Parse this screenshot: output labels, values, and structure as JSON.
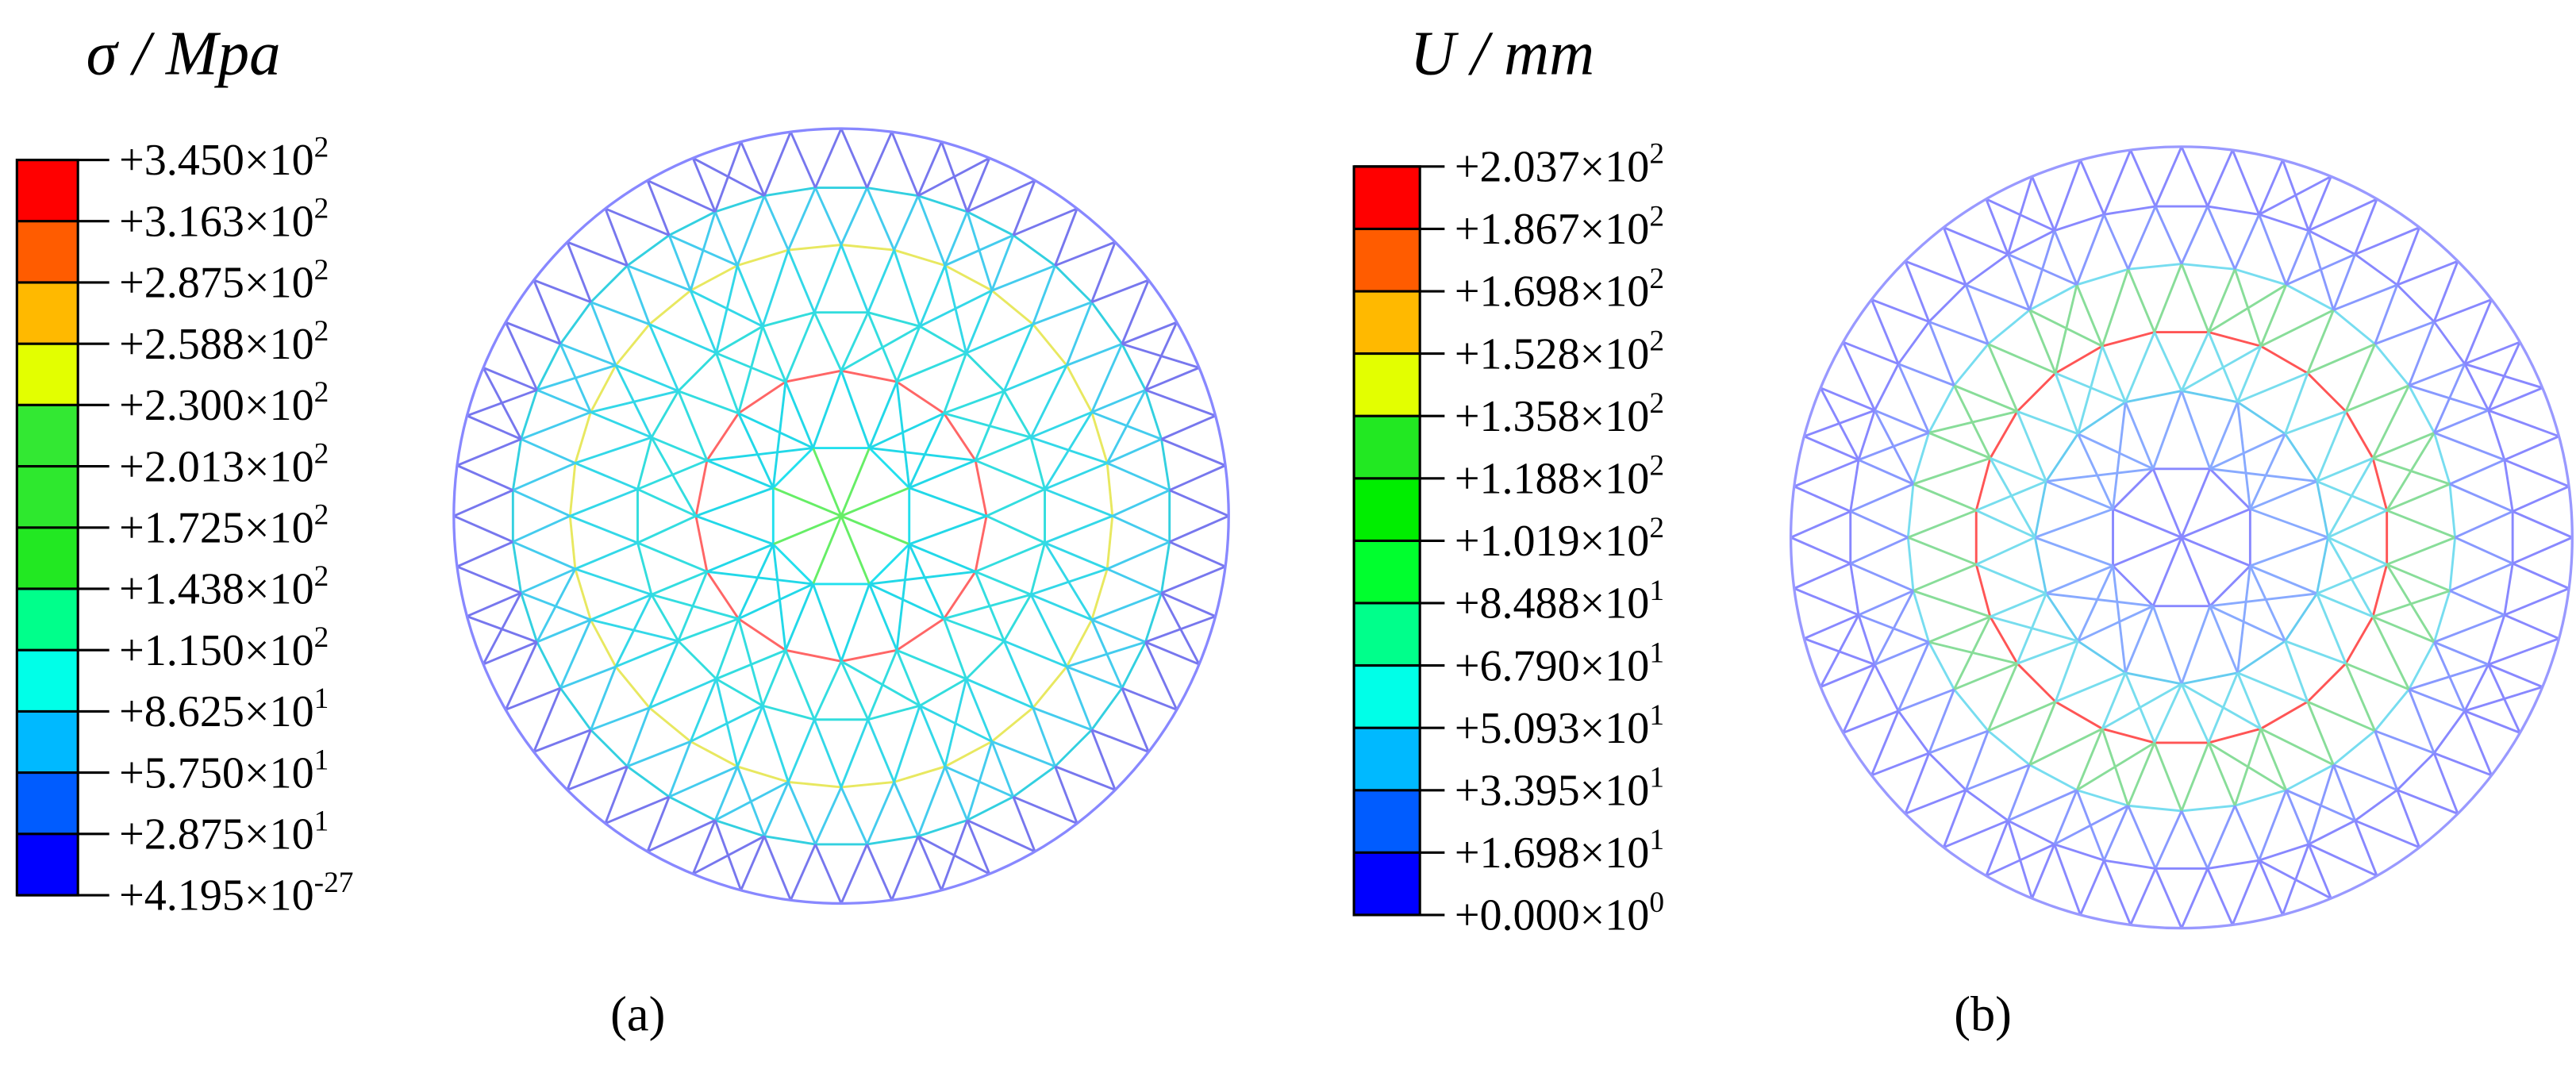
{
  "panels": [
    {
      "title": "σ / Mpa",
      "caption": "(a)",
      "colors": [
        "#ff0000",
        "#ff5c00",
        "#ffb900",
        "#e3ff00",
        "#33e833",
        "#2ee82e",
        "#22e822",
        "#00ff8b",
        "#00ffe8",
        "#00b9ff",
        "#005cff",
        "#0000ff"
      ],
      "labels": [
        {
          "mantissa": "+3.450×10",
          "exponent": "2"
        },
        {
          "mantissa": "+3.163×10",
          "exponent": "2"
        },
        {
          "mantissa": "+2.875×10",
          "exponent": "2"
        },
        {
          "mantissa": "+2.588×10",
          "exponent": "2"
        },
        {
          "mantissa": "+2.300×10",
          "exponent": "2"
        },
        {
          "mantissa": "+2.013×10",
          "exponent": "2"
        },
        {
          "mantissa": "+1.725×10",
          "exponent": "2"
        },
        {
          "mantissa": "+1.438×10",
          "exponent": "2"
        },
        {
          "mantissa": "+1.150×10",
          "exponent": "2"
        },
        {
          "mantissa": "+8.625×10",
          "exponent": "1"
        },
        {
          "mantissa": "+5.750×10",
          "exponent": "1"
        },
        {
          "mantissa": "+2.875×10",
          "exponent": "1"
        },
        {
          "mantissa": "+4.195×10",
          "exponent": "-27"
        }
      ]
    },
    {
      "title": "U / mm",
      "caption": "(b)",
      "colors": [
        "#ff0000",
        "#ff5c00",
        "#ffb900",
        "#e3ff00",
        "#22e822",
        "#00ee00",
        "#00ff2e",
        "#00ff8b",
        "#00ffe8",
        "#00b9ff",
        "#005cff",
        "#0000ff"
      ],
      "labels": [
        {
          "mantissa": "+2.037×10",
          "exponent": "2"
        },
        {
          "mantissa": "+1.867×10",
          "exponent": "2"
        },
        {
          "mantissa": "+1.698×10",
          "exponent": "2"
        },
        {
          "mantissa": "+1.528×10",
          "exponent": "2"
        },
        {
          "mantissa": "+1.358×10",
          "exponent": "2"
        },
        {
          "mantissa": "+1.188×10",
          "exponent": "2"
        },
        {
          "mantissa": "+1.019×10",
          "exponent": "2"
        },
        {
          "mantissa": "+8.488×10",
          "exponent": "1"
        },
        {
          "mantissa": "+6.790×10",
          "exponent": "1"
        },
        {
          "mantissa": "+5.093×10",
          "exponent": "1"
        },
        {
          "mantissa": "+3.395×10",
          "exponent": "1"
        },
        {
          "mantissa": "+1.698×10",
          "exponent": "1"
        },
        {
          "mantissa": "+0.000×10",
          "exponent": "0"
        }
      ]
    }
  ]
}
